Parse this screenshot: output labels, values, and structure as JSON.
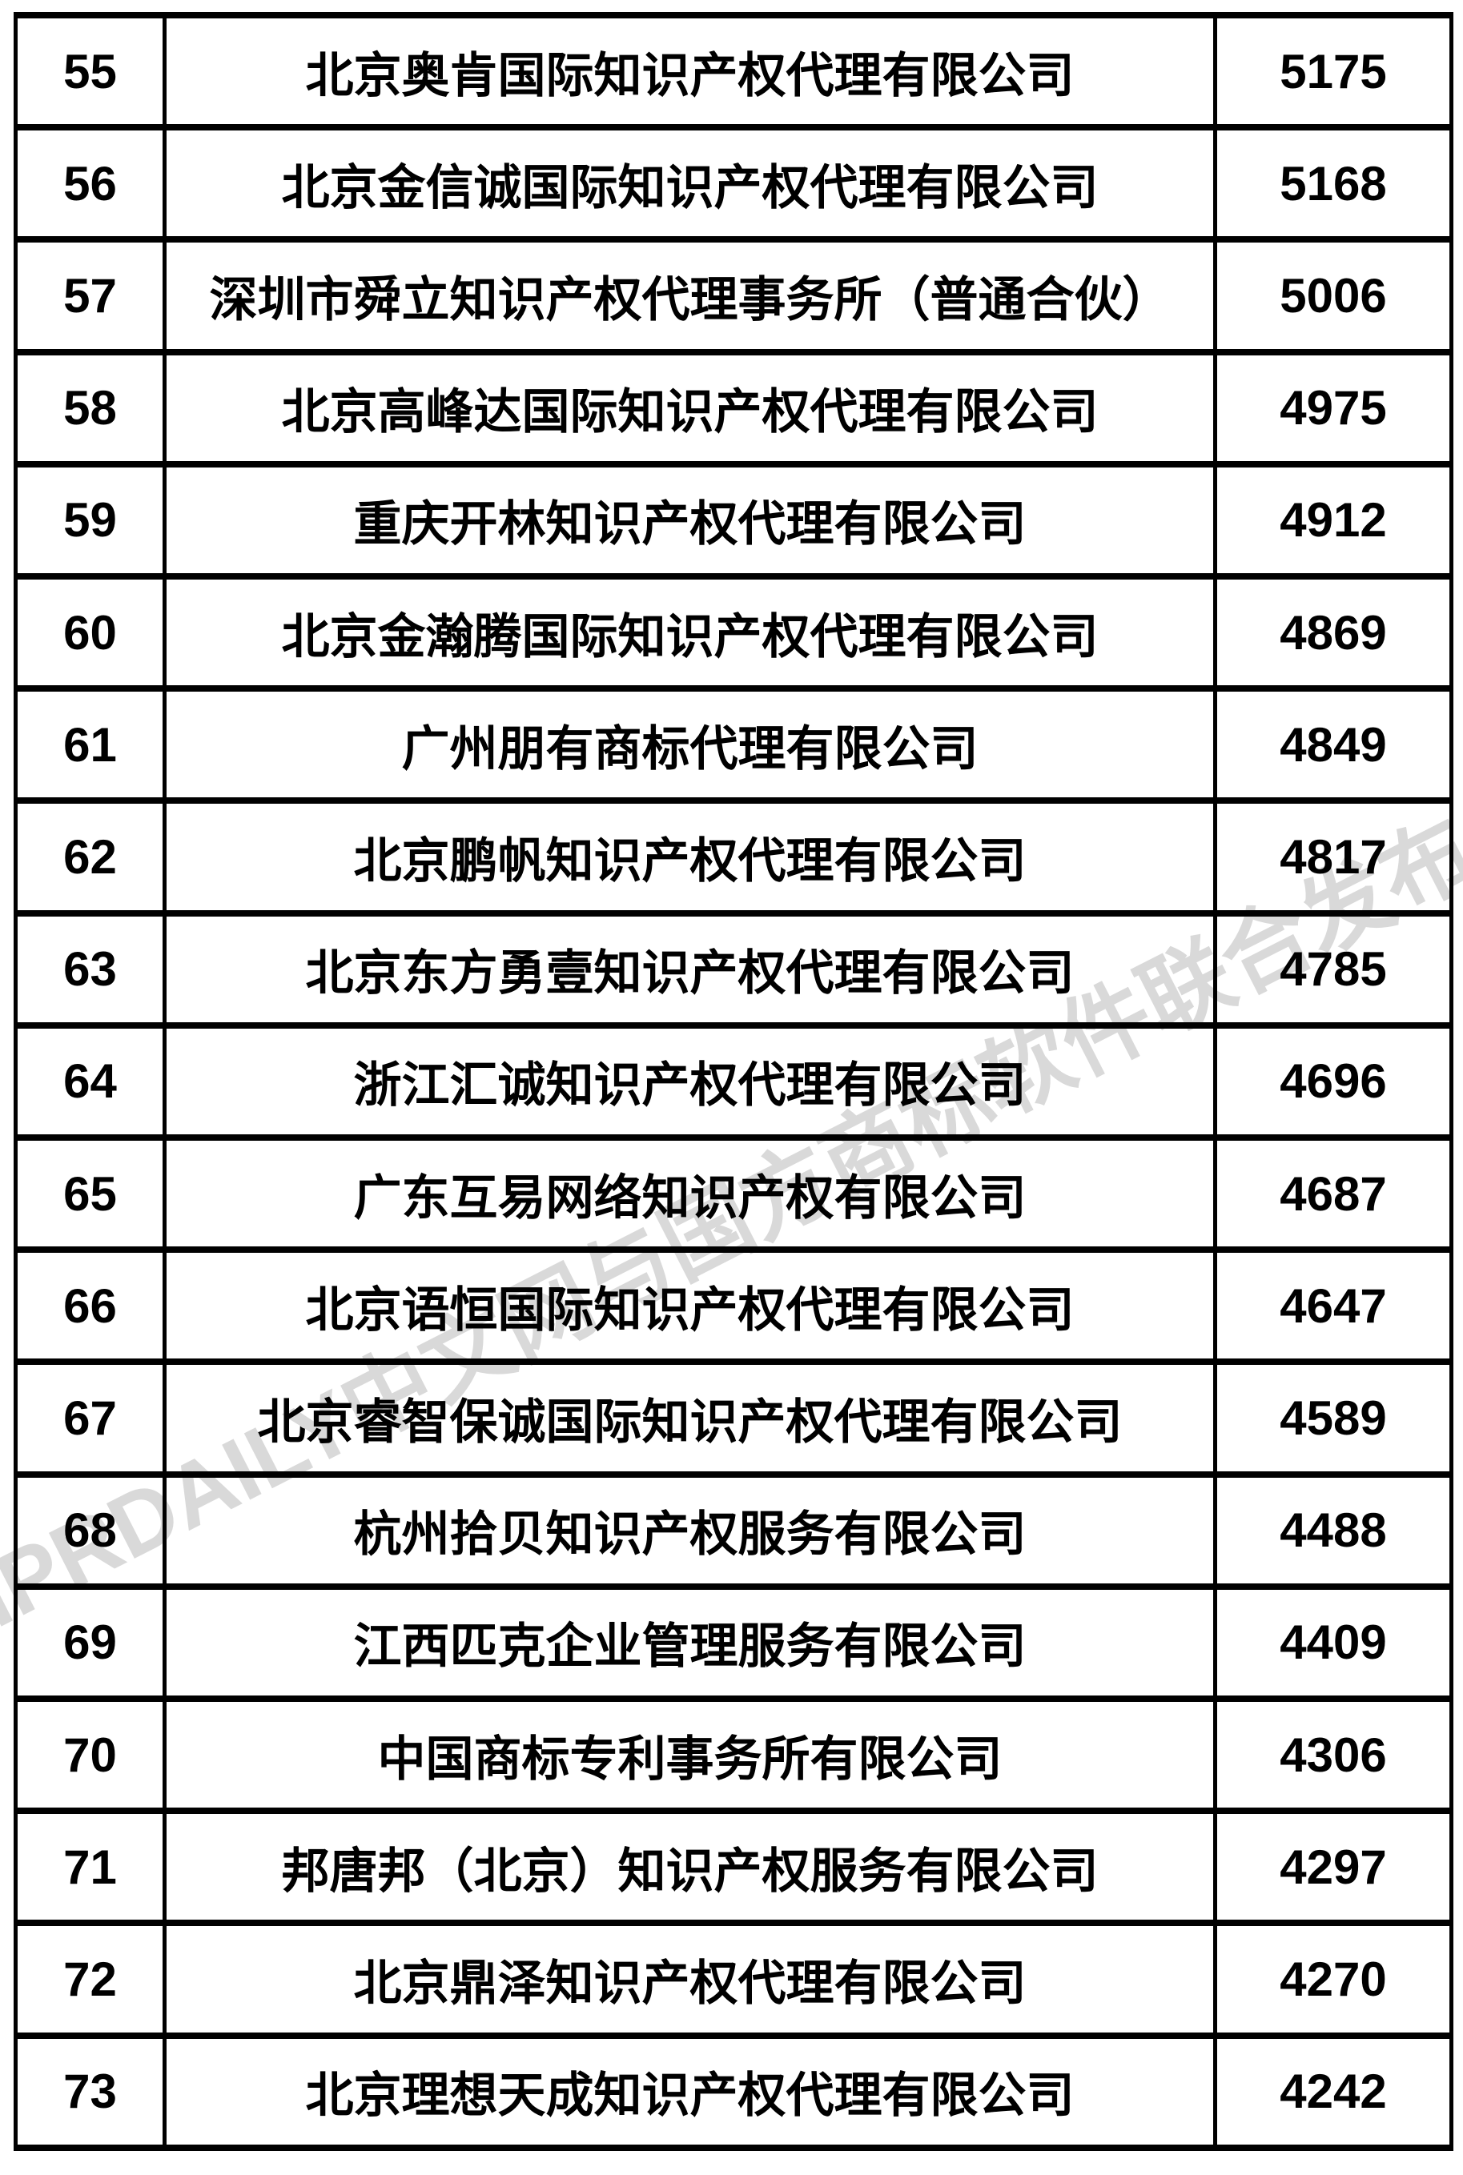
{
  "watermark": "IPRDAILY中文网与国方商标软件联合发布",
  "colors": {
    "background": "#ffffff",
    "border": "#000000",
    "text": "#000000",
    "watermark": "#d9d9d9"
  },
  "table": {
    "rows": [
      {
        "rank": "55",
        "company": "北京奥肯国际知识产权代理有限公司",
        "count": "5175"
      },
      {
        "rank": "56",
        "company": "北京金信诚国际知识产权代理有限公司",
        "count": "5168"
      },
      {
        "rank": "57",
        "company": "深圳市舜立知识产权代理事务所（普通合伙）",
        "count": "5006"
      },
      {
        "rank": "58",
        "company": "北京高峰达国际知识产权代理有限公司",
        "count": "4975"
      },
      {
        "rank": "59",
        "company": "重庆开林知识产权代理有限公司",
        "count": "4912"
      },
      {
        "rank": "60",
        "company": "北京金瀚腾国际知识产权代理有限公司",
        "count": "4869"
      },
      {
        "rank": "61",
        "company": "广州朋有商标代理有限公司",
        "count": "4849"
      },
      {
        "rank": "62",
        "company": "北京鹏帆知识产权代理有限公司",
        "count": "4817"
      },
      {
        "rank": "63",
        "company": "北京东方勇壹知识产权代理有限公司",
        "count": "4785"
      },
      {
        "rank": "64",
        "company": "浙江汇诚知识产权代理有限公司",
        "count": "4696"
      },
      {
        "rank": "65",
        "company": "广东互易网络知识产权有限公司",
        "count": "4687"
      },
      {
        "rank": "66",
        "company": "北京语恒国际知识产权代理有限公司",
        "count": "4647"
      },
      {
        "rank": "67",
        "company": "北京睿智保诚国际知识产权代理有限公司",
        "count": "4589"
      },
      {
        "rank": "68",
        "company": "杭州拾贝知识产权服务有限公司",
        "count": "4488"
      },
      {
        "rank": "69",
        "company": "江西匹克企业管理服务有限公司",
        "count": "4409"
      },
      {
        "rank": "70",
        "company": "中国商标专利事务所有限公司",
        "count": "4306"
      },
      {
        "rank": "71",
        "company": "邦唐邦（北京）知识产权服务有限公司",
        "count": "4297"
      },
      {
        "rank": "72",
        "company": "北京鼎泽知识产权代理有限公司",
        "count": "4270"
      },
      {
        "rank": "73",
        "company": "北京理想天成知识产权代理有限公司",
        "count": "4242"
      }
    ]
  }
}
